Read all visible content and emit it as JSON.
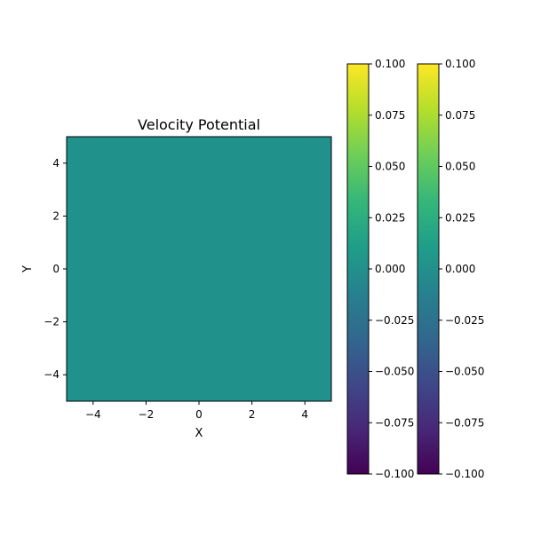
{
  "chart_data": {
    "type": "heatmap",
    "title": "Velocity Potential",
    "xlabel": "X",
    "ylabel": "Y",
    "xlim": [
      -5,
      5
    ],
    "ylim": [
      -5,
      5
    ],
    "xticks": [
      -4,
      -2,
      0,
      2,
      4
    ],
    "yticks": [
      -4,
      -2,
      0,
      2,
      4
    ],
    "xtick_labels": [
      "−4",
      "−2",
      "0",
      "2",
      "4"
    ],
    "ytick_labels": [
      "−4",
      "−2",
      "0",
      "2",
      "4"
    ],
    "field_value": 0.0,
    "field_color": "#21918c",
    "colormap": "viridis",
    "colormap_stops": [
      "#440154",
      "#482878",
      "#3e4989",
      "#31688e",
      "#26828e",
      "#1f9e89",
      "#35b779",
      "#6ece58",
      "#b5de2b",
      "#fde725"
    ],
    "grid": false,
    "colorbars": [
      {
        "vmin": -0.1,
        "vmax": 0.1,
        "ticks": [
          -0.1,
          -0.075,
          -0.05,
          -0.025,
          0.0,
          0.025,
          0.05,
          0.075,
          0.1
        ],
        "tick_labels": [
          "−0.100",
          "−0.075",
          "−0.050",
          "−0.025",
          "0.000",
          "0.025",
          "0.050",
          "0.075",
          "0.100"
        ]
      },
      {
        "vmin": -0.1,
        "vmax": 0.1,
        "ticks": [
          -0.1,
          -0.075,
          -0.05,
          -0.025,
          0.0,
          0.025,
          0.05,
          0.075,
          0.1
        ],
        "tick_labels": [
          "−0.100",
          "−0.075",
          "−0.050",
          "−0.025",
          "0.000",
          "0.025",
          "0.050",
          "0.075",
          "0.100"
        ]
      }
    ]
  }
}
